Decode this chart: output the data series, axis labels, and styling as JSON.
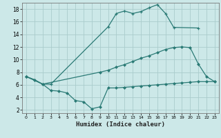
{
  "line1_x": [
    0,
    1,
    2,
    3,
    10,
    11,
    12,
    13,
    14,
    15,
    16,
    17,
    18,
    21
  ],
  "line1_y": [
    7.3,
    6.8,
    6.1,
    6.1,
    15.2,
    17.3,
    17.7,
    17.3,
    17.6,
    18.2,
    18.7,
    17.3,
    15.1,
    15.0
  ],
  "line2_x": [
    0,
    2,
    9,
    10,
    11,
    12,
    13,
    14,
    15,
    16,
    17,
    18,
    19,
    20,
    21,
    22,
    23
  ],
  "line2_y": [
    7.3,
    6.1,
    8.0,
    8.3,
    8.8,
    9.2,
    9.7,
    10.2,
    10.6,
    11.1,
    11.6,
    11.9,
    12.0,
    11.9,
    9.3,
    7.3,
    6.5
  ],
  "line3_x": [
    0,
    1,
    2,
    3,
    4,
    5,
    6,
    7,
    8,
    9,
    10,
    11,
    12,
    13,
    14,
    15,
    16,
    17,
    18,
    19,
    20,
    21,
    22,
    23
  ],
  "line3_y": [
    7.3,
    6.8,
    6.1,
    5.1,
    5.0,
    4.7,
    3.5,
    3.3,
    2.2,
    2.5,
    5.5,
    5.5,
    5.6,
    5.7,
    5.8,
    5.9,
    6.0,
    6.1,
    6.2,
    6.3,
    6.4,
    6.5,
    6.5,
    6.5
  ],
  "color": "#2a7a75",
  "bg_color": "#cce8e8",
  "grid_color": "#aacccc",
  "xlabel": "Humidex (Indice chaleur)",
  "xlim": [
    -0.5,
    23.5
  ],
  "ylim": [
    1.5,
    19.0
  ],
  "yticks": [
    2,
    4,
    6,
    8,
    10,
    12,
    14,
    16,
    18
  ],
  "xticks": [
    0,
    1,
    2,
    3,
    4,
    5,
    6,
    7,
    8,
    9,
    10,
    11,
    12,
    13,
    14,
    15,
    16,
    17,
    18,
    19,
    20,
    21,
    22,
    23
  ]
}
